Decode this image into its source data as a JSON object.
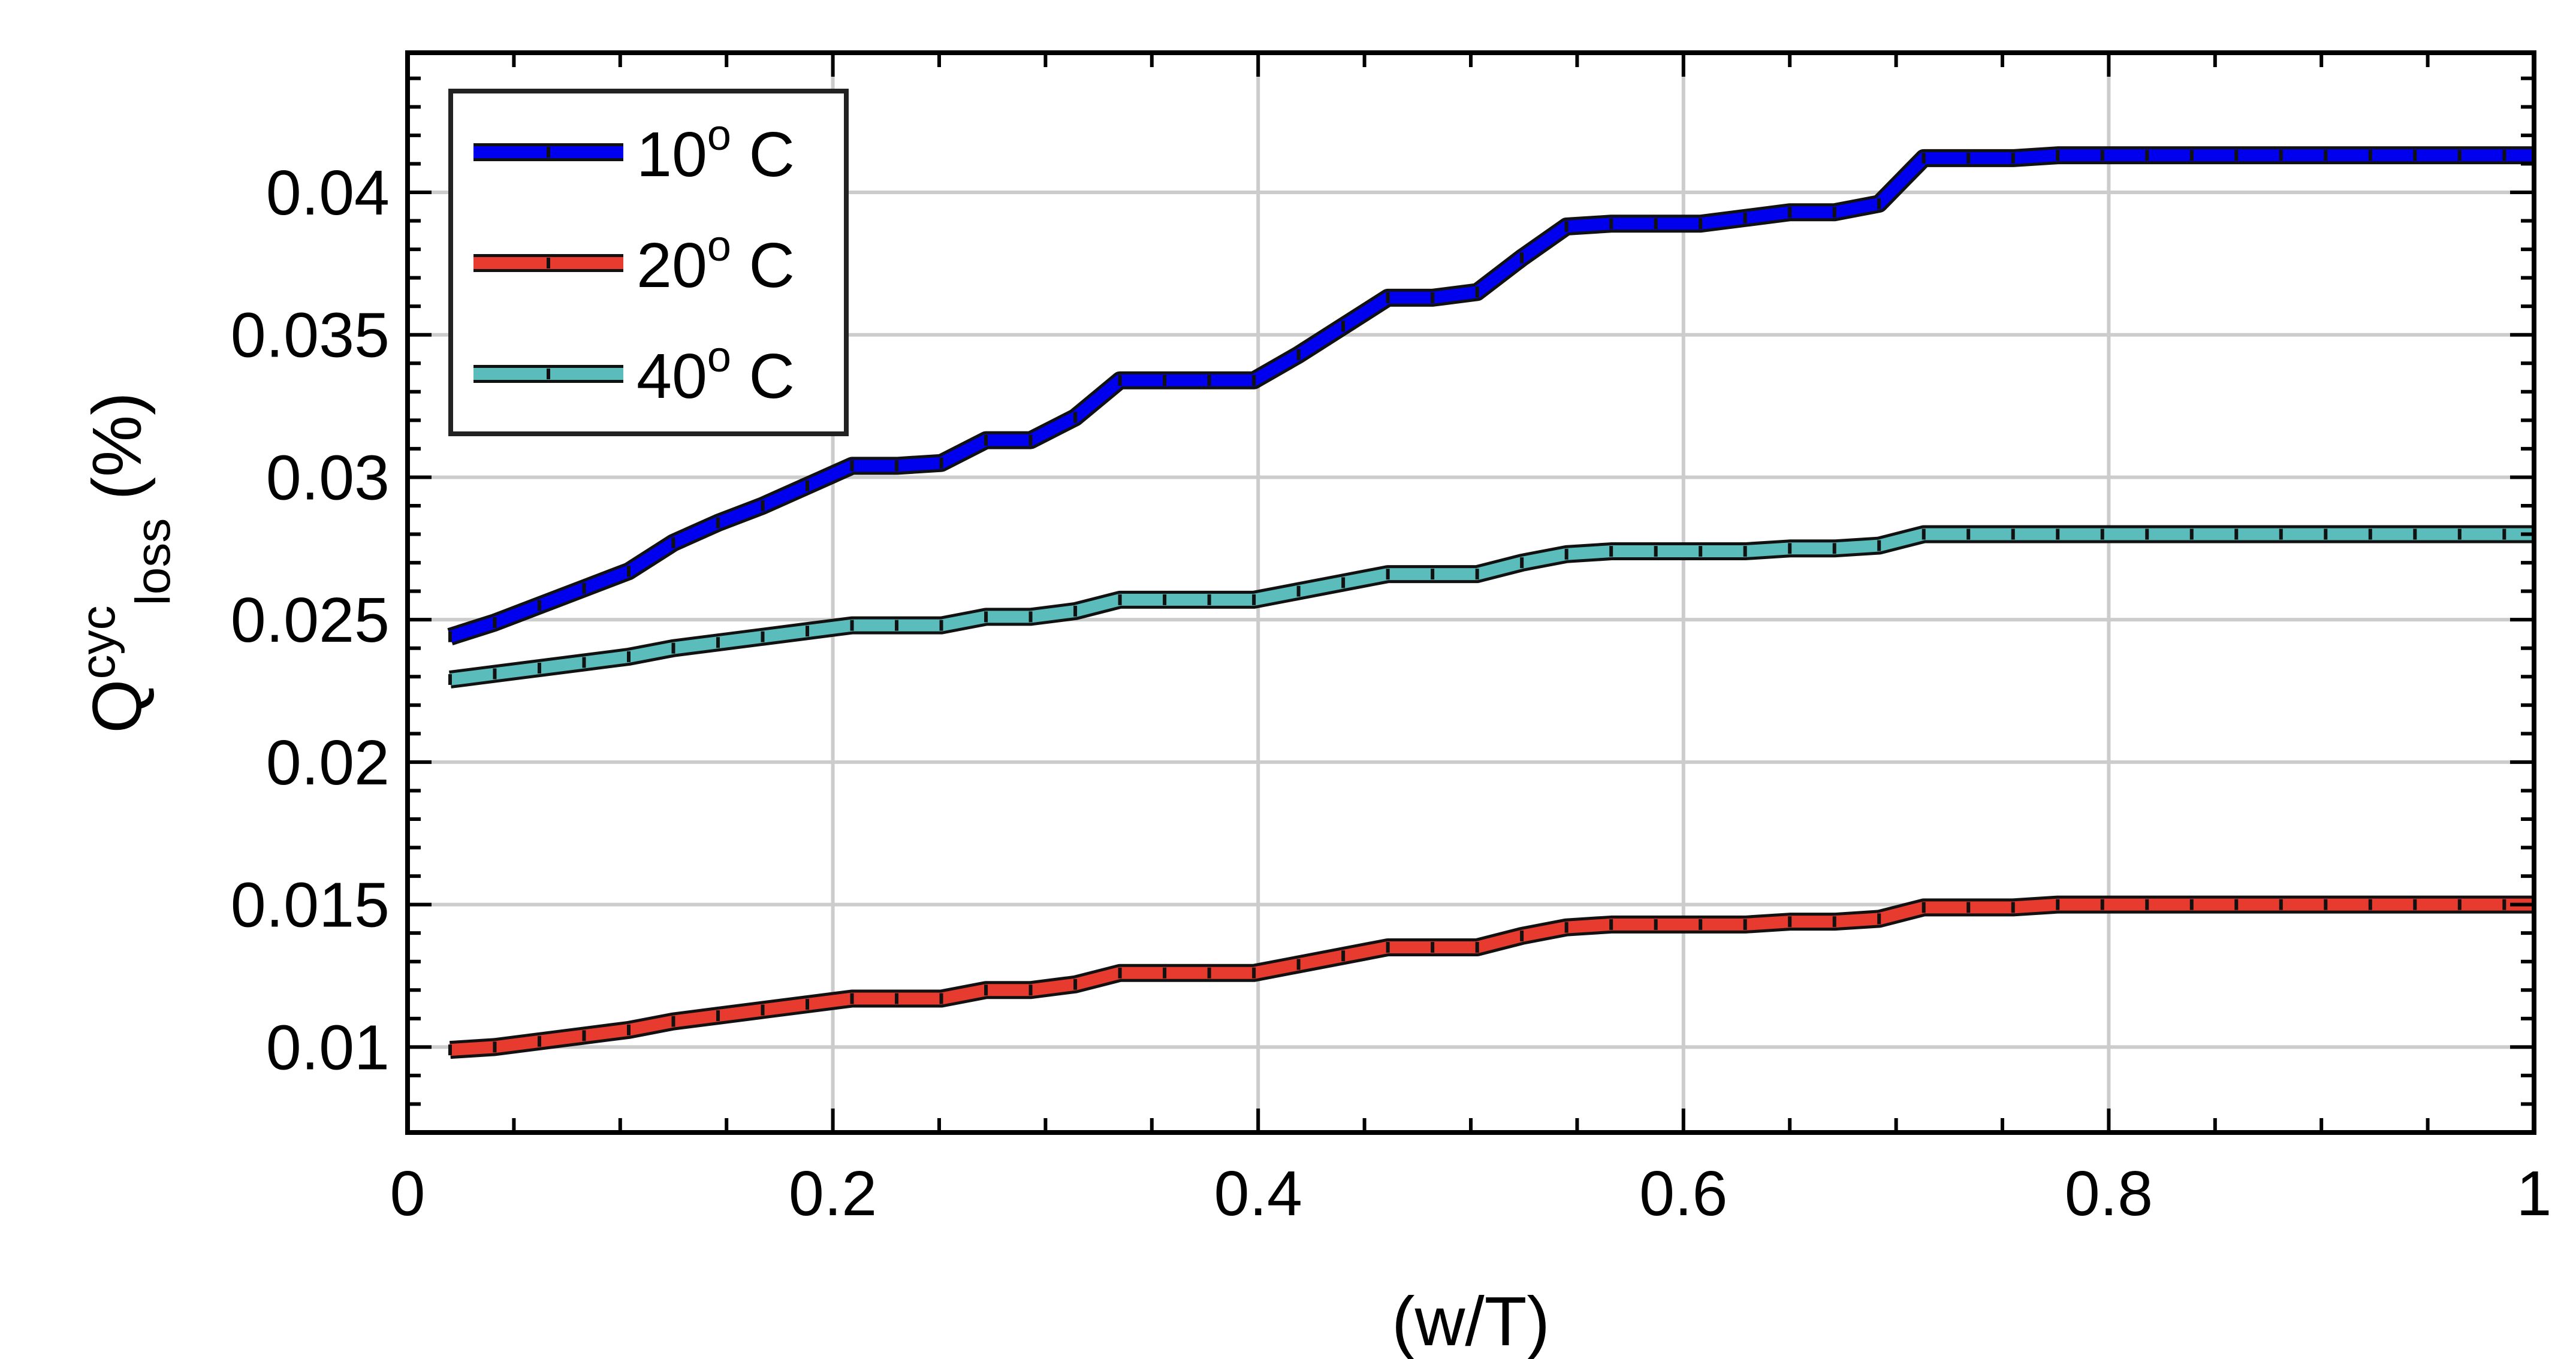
{
  "chart_data": {
    "type": "line",
    "xlabel": "(w/T)",
    "ylabel": {
      "base": "Q",
      "superscript": "cyc",
      "subscript": "loss",
      "unit": "(%)"
    },
    "xlim": [
      0,
      1
    ],
    "ylim": [
      0.007,
      0.0449
    ],
    "xticks": [
      0,
      0.2,
      0.4,
      0.6,
      0.8,
      1
    ],
    "xtick_labels": [
      "0",
      "0.2",
      "0.4",
      "0.6",
      "0.8",
      "1"
    ],
    "yticks": [
      0.01,
      0.015,
      0.02,
      0.025,
      0.03,
      0.035,
      0.04
    ],
    "ytick_labels": [
      "0.01",
      "0.015",
      "0.02",
      "0.025",
      "0.03",
      "0.035",
      "0.04"
    ],
    "grid": true,
    "legend_position": "top-left",
    "x": [
      0.02,
      0.041,
      0.062,
      0.083,
      0.104,
      0.125,
      0.146,
      0.167,
      0.188,
      0.209,
      0.23,
      0.251,
      0.272,
      0.293,
      0.314,
      0.335,
      0.356,
      0.377,
      0.398,
      0.419,
      0.44,
      0.461,
      0.482,
      0.503,
      0.524,
      0.545,
      0.566,
      0.587,
      0.608,
      0.629,
      0.65,
      0.671,
      0.692,
      0.713,
      0.734,
      0.755,
      0.776,
      0.797,
      0.818,
      0.839,
      0.86,
      0.881,
      0.902,
      0.923,
      0.944,
      0.965,
      0.986,
      1.0
    ],
    "series": [
      {
        "name": "10",
        "label_sup": "o",
        "label_suffix": " C",
        "color": "#0000ee",
        "values": [
          0.0244,
          0.0249,
          0.0255,
          0.0261,
          0.0267,
          0.0277,
          0.0284,
          0.029,
          0.0297,
          0.0304,
          0.0304,
          0.0305,
          0.0313,
          0.0313,
          0.0321,
          0.0334,
          0.0334,
          0.0334,
          0.0334,
          0.0343,
          0.0353,
          0.0363,
          0.0363,
          0.0365,
          0.0377,
          0.0388,
          0.0389,
          0.0389,
          0.0389,
          0.0391,
          0.0393,
          0.0393,
          0.0396,
          0.0412,
          0.0412,
          0.0412,
          0.0413,
          0.0413,
          0.0413,
          0.0413,
          0.0413,
          0.0413,
          0.0413,
          0.0413,
          0.0413,
          0.0413,
          0.0413,
          0.0413
        ]
      },
      {
        "name": "20",
        "label_sup": "o",
        "label_suffix": " C",
        "color": "#e63b2e",
        "values": [
          0.0099,
          0.01,
          0.0102,
          0.0104,
          0.0106,
          0.0109,
          0.0111,
          0.0113,
          0.0115,
          0.0117,
          0.0117,
          0.0117,
          0.012,
          0.012,
          0.0122,
          0.0126,
          0.0126,
          0.0126,
          0.0126,
          0.0129,
          0.0132,
          0.0135,
          0.0135,
          0.0135,
          0.0139,
          0.0142,
          0.0143,
          0.0143,
          0.0143,
          0.0143,
          0.0144,
          0.0144,
          0.0145,
          0.0149,
          0.0149,
          0.0149,
          0.015,
          0.015,
          0.015,
          0.015,
          0.015,
          0.015,
          0.015,
          0.015,
          0.015,
          0.015,
          0.015,
          0.015
        ]
      },
      {
        "name": "40",
        "label_sup": "o",
        "label_suffix": " C",
        "color": "#5bbcbc",
        "values": [
          0.0229,
          0.0231,
          0.0233,
          0.0235,
          0.0237,
          0.024,
          0.0242,
          0.0244,
          0.0246,
          0.0248,
          0.0248,
          0.0248,
          0.0251,
          0.0251,
          0.0253,
          0.0257,
          0.0257,
          0.0257,
          0.0257,
          0.026,
          0.0263,
          0.0266,
          0.0266,
          0.0266,
          0.027,
          0.0273,
          0.0274,
          0.0274,
          0.0274,
          0.0274,
          0.0275,
          0.0275,
          0.0276,
          0.028,
          0.028,
          0.028,
          0.028,
          0.028,
          0.028,
          0.028,
          0.028,
          0.028,
          0.028,
          0.028,
          0.028,
          0.028,
          0.028,
          0.028
        ]
      }
    ]
  }
}
